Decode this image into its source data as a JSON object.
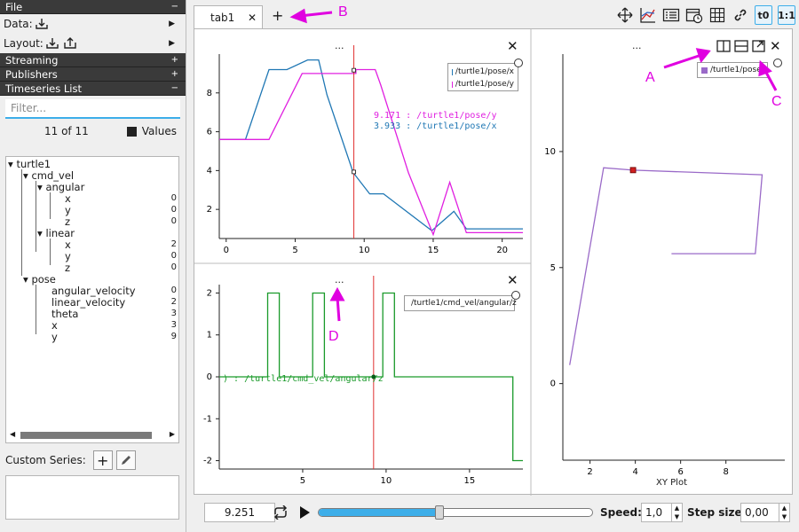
{
  "sidebar": {
    "file_header": "File",
    "data_label": "Data:",
    "layout_label": "Layout:",
    "streaming_header": "Streaming",
    "publishers_header": "Publishers",
    "timeseries_header": "Timeseries List",
    "filter_placeholder": "Filter...",
    "count_text": "11 of 11",
    "values_label": "Values",
    "tree": [
      {
        "label": "turtle1",
        "value": ""
      },
      {
        "label": "cmd_vel",
        "value": ""
      },
      {
        "label": "angular",
        "value": ""
      },
      {
        "label": "x",
        "value": "0"
      },
      {
        "label": "y",
        "value": "0"
      },
      {
        "label": "z",
        "value": "0"
      },
      {
        "label": "linear",
        "value": ""
      },
      {
        "label": "x",
        "value": "2"
      },
      {
        "label": "y",
        "value": "0"
      },
      {
        "label": "z",
        "value": "0"
      },
      {
        "label": "pose",
        "value": ""
      },
      {
        "label": "angular_velocity",
        "value": "0"
      },
      {
        "label": "linear_velocity",
        "value": "2"
      },
      {
        "label": "theta",
        "value": "3"
      },
      {
        "label": "x",
        "value": "3"
      },
      {
        "label": "y",
        "value": "9"
      }
    ],
    "custom_series_label": "Custom Series:"
  },
  "tabs": [
    {
      "label": "tab1"
    }
  ],
  "plots": {
    "dots": "...",
    "top_left": {
      "legend": [
        "/turtle1/pose/x",
        "/turtle1/pose/y"
      ],
      "cursor_labels": [
        "9.171 : /turtle1/pose/y",
        "3.933 : /turtle1/pose/x"
      ]
    },
    "bottom_left": {
      "legend": [
        "/turtle1/cmd_vel/angular/z"
      ],
      "cursor_label": ") : /turtle1/cmd_vel/angular/z"
    },
    "right": {
      "legend": [
        "/turtle1/pose/x"
      ],
      "xlabel": "XY Plot"
    }
  },
  "bottom": {
    "time": "9.251",
    "speed_label": "Speed:",
    "speed_value": "1,0",
    "step_label": "Step size:",
    "step_value": "0,00",
    "progress": 0.44
  },
  "toolbar": {
    "t0_label": "t0",
    "ratio_label": "1:1"
  },
  "annotations": [
    "A",
    "B",
    "C",
    "D"
  ],
  "colors": {
    "pose_x": "#1f77b4",
    "pose_y": "#e020e0",
    "angular_z": "#1a9a2a",
    "xy": "#9a6ac8",
    "cursor": "#e03030",
    "accent": "#3daee9",
    "annotation": "#e000e0"
  },
  "chart_data": [
    {
      "type": "line",
      "xlim": [
        -0.5,
        21.5
      ],
      "ylim": [
        0.5,
        10
      ],
      "xticks": [
        0,
        5,
        10,
        15,
        20
      ],
      "yticks": [
        2,
        4,
        6,
        8
      ],
      "series": [
        {
          "name": "/turtle1/pose/x",
          "color": "#1f77b4",
          "x": [
            -0.5,
            1.4,
            3.1,
            4.4,
            5.9,
            6.7,
            7.3,
            9.2,
            10.4,
            11.4,
            14.9,
            16.5,
            17.4,
            21.5
          ],
          "y": [
            5.6,
            5.6,
            9.2,
            9.2,
            9.7,
            9.7,
            7.9,
            3.9,
            2.8,
            2.8,
            0.9,
            1.9,
            1.0,
            1.0
          ]
        },
        {
          "name": "/turtle1/pose/y",
          "color": "#e020e0",
          "x": [
            -0.5,
            3.1,
            5.5,
            9.4,
            9.4,
            10.8,
            11.2,
            13.2,
            15.0,
            16.2,
            17.4,
            21.5
          ],
          "y": [
            5.6,
            5.6,
            9.0,
            9.0,
            9.2,
            9.2,
            8.4,
            3.9,
            0.7,
            3.4,
            0.8,
            0.8
          ]
        }
      ],
      "cursor_x": 9.25
    },
    {
      "type": "line",
      "xlim": [
        0,
        18.2
      ],
      "ylim": [
        -2.2,
        2.2
      ],
      "xticks": [
        5,
        10,
        15
      ],
      "yticks": [
        -2,
        -1,
        0,
        1,
        2
      ],
      "series": [
        {
          "name": "/turtle1/cmd_vel/angular/z",
          "color": "#1a9a2a",
          "x": [
            0,
            2.9,
            2.9,
            3.6,
            3.6,
            5.6,
            5.6,
            6.3,
            6.3,
            9.8,
            9.8,
            10.5,
            10.5,
            17.6,
            17.6,
            18.2
          ],
          "y": [
            0,
            0,
            2,
            2,
            0,
            0,
            2,
            2,
            0,
            0,
            2,
            2,
            0,
            0,
            -2,
            -2
          ]
        }
      ],
      "cursor_x": 9.25
    },
    {
      "type": "line",
      "xlim": [
        0.8,
        10.6
      ],
      "ylim": [
        -3.3,
        14.2
      ],
      "xticks": [
        2,
        4,
        6,
        8
      ],
      "yticks": [
        0,
        5,
        10
      ],
      "xlabel": "XY Plot",
      "series": [
        {
          "name": "/turtle1/pose/x",
          "color": "#9a6ac8",
          "x": [
            1.1,
            2.6,
            3.9,
            9.6,
            9.3,
            5.6
          ],
          "y": [
            0.8,
            9.3,
            9.2,
            9.0,
            5.6,
            5.6
          ]
        }
      ],
      "marker": [
        3.9,
        9.2
      ]
    }
  ]
}
